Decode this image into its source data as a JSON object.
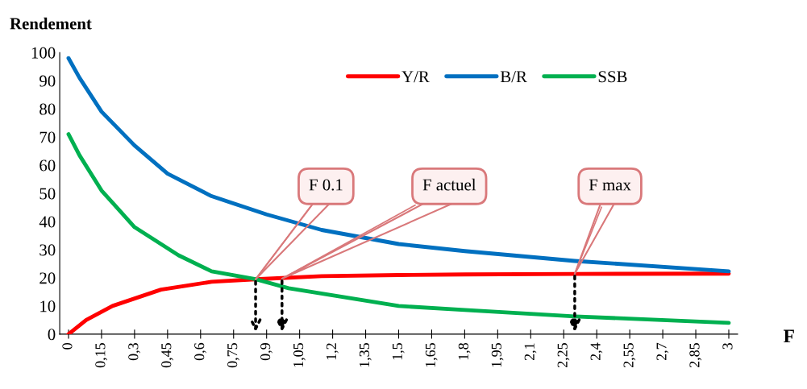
{
  "chart_data": {
    "type": "line",
    "ylabel": "Rendement",
    "xlabel": "F",
    "xlim": [
      -0.04,
      3.04
    ],
    "ylim": [
      0,
      100
    ],
    "yticks": [
      0,
      10,
      20,
      30,
      40,
      50,
      60,
      70,
      80,
      90,
      100
    ],
    "xticks": [
      0,
      {
        "value": 0.15,
        "label": "0,15"
      },
      {
        "value": 0.3,
        "label": "0,3"
      },
      {
        "value": 0.45,
        "label": "0,45"
      },
      {
        "value": 0.6,
        "label": "0,6"
      },
      {
        "value": 0.75,
        "label": "0,75"
      },
      {
        "value": 0.9,
        "label": "0,9"
      },
      {
        "value": 1.05,
        "label": "1,05"
      },
      {
        "value": 1.2,
        "label": "1,2"
      },
      {
        "value": 1.35,
        "label": "1,35"
      },
      {
        "value": 1.5,
        "label": "1,5"
      },
      {
        "value": 1.65,
        "label": "1,65"
      },
      {
        "value": 1.8,
        "label": "1,8"
      },
      {
        "value": 1.95,
        "label": "1,95"
      },
      {
        "value": 2.1,
        "label": "2,1"
      },
      {
        "value": 2.25,
        "label": "2,25"
      },
      {
        "value": 2.4,
        "label": "2,4"
      },
      {
        "value": 2.55,
        "label": "2,55"
      },
      {
        "value": 2.7,
        "label": "2,7"
      },
      {
        "value": 2.85,
        "label": "2,85"
      },
      3
    ],
    "grid": false,
    "legend": "top right",
    "marker": "none",
    "line_style": "solid",
    "series": [
      {
        "name": "Y/R",
        "color": "#ff0000",
        "x": [
          0,
          0.08,
          0.2,
          0.42,
          0.65,
          0.85,
          1.15,
          1.5,
          1.8,
          2.3,
          3
        ],
        "values": [
          0,
          5,
          10,
          15.8,
          18.6,
          19.5,
          20.6,
          21,
          21.2,
          21.4,
          21.5
        ]
      },
      {
        "name": "B/R",
        "color": "#0070c0",
        "x": [
          0,
          0.05,
          0.15,
          0.3,
          0.45,
          0.65,
          0.9,
          1.15,
          1.5,
          1.8,
          2.3,
          3
        ],
        "values": [
          98,
          91,
          79,
          67,
          57,
          49,
          42.5,
          37,
          32,
          29.5,
          26,
          22.3
        ]
      },
      {
        "name": "SSB",
        "color": "#00b050",
        "x": [
          0,
          0.05,
          0.15,
          0.3,
          0.5,
          0.65,
          0.85,
          1.0,
          1.5,
          1.8,
          2.3,
          3
        ],
        "values": [
          71,
          63.5,
          51,
          38,
          28,
          22.3,
          19.5,
          16.3,
          10,
          8.6,
          6.3,
          4
        ]
      }
    ],
    "annotations": [
      {
        "text": "F 0.1",
        "x": 0.85,
        "y": 19.5
      },
      {
        "text": "F actuel",
        "x": 0.97,
        "y": 19.7
      },
      {
        "text": "F max",
        "x": 2.3,
        "y": 21.4
      }
    ]
  }
}
